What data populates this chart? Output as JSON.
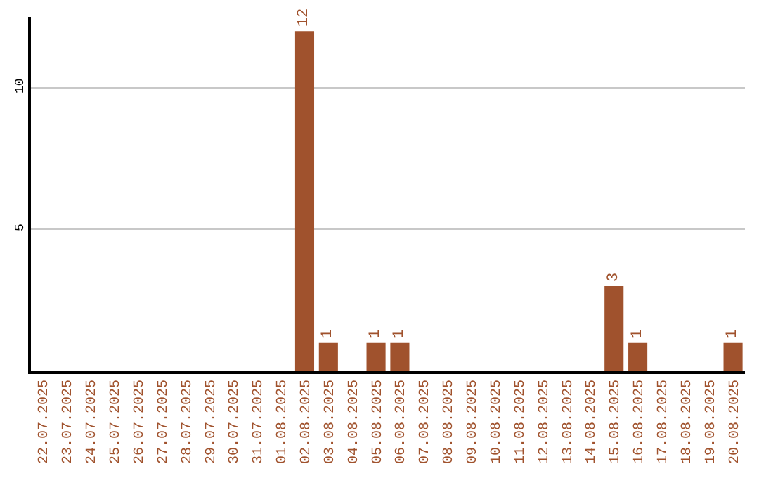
{
  "chart_data": {
    "type": "bar",
    "categories": [
      "22.07.2025",
      "23.07.2025",
      "24.07.2025",
      "25.07.2025",
      "26.07.2025",
      "27.07.2025",
      "28.07.2025",
      "29.07.2025",
      "30.07.2025",
      "31.07.2025",
      "01.08.2025",
      "02.08.2025",
      "03.08.2025",
      "04.08.2025",
      "05.08.2025",
      "06.08.2025",
      "07.08.2025",
      "08.08.2025",
      "09.08.2025",
      "10.08.2025",
      "11.08.2025",
      "12.08.2025",
      "13.08.2025",
      "14.08.2025",
      "15.08.2025",
      "16.08.2025",
      "17.08.2025",
      "18.08.2025",
      "19.08.2025",
      "20.08.2025"
    ],
    "values": [
      0,
      0,
      0,
      0,
      0,
      0,
      0,
      0,
      0,
      0,
      0,
      12,
      1,
      0,
      1,
      1,
      0,
      0,
      0,
      0,
      0,
      0,
      0,
      0,
      3,
      1,
      0,
      0,
      0,
      1
    ],
    "value_labels": [
      null,
      null,
      null,
      null,
      null,
      null,
      null,
      null,
      null,
      null,
      null,
      "12",
      "1",
      null,
      "1",
      "1",
      null,
      null,
      null,
      null,
      null,
      null,
      null,
      null,
      "3",
      "1",
      null,
      null,
      null,
      "1"
    ],
    "color": "#a0522d",
    "ylim": [
      0,
      12.5
    ],
    "yticks": [
      5,
      10
    ],
    "grid": "y",
    "legend": false
  }
}
